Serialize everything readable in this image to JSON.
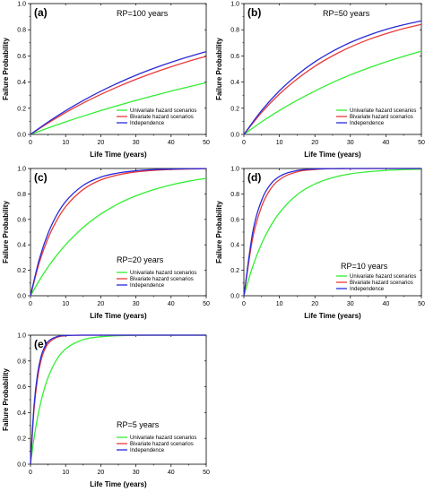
{
  "chart_data": [
    {
      "type": "line",
      "panel_label": "(a)",
      "annotation": "RP=100 years",
      "xlabel": "Life Time (years)",
      "ylabel": "Failure Probability",
      "xlim": [
        0,
        50
      ],
      "ylim": [
        0,
        1.0
      ],
      "xticks": [
        "0",
        "10",
        "20",
        "30",
        "40",
        "50"
      ],
      "yticks": [
        "0.0",
        "0.2",
        "0.4",
        "0.6",
        "0.8",
        "1.0"
      ],
      "legend_position": "bottom-right",
      "x": [
        0,
        5,
        10,
        15,
        20,
        25,
        30,
        35,
        40,
        45,
        50
      ],
      "series": [
        {
          "name": "Univariate hazard scenarios",
          "color": "#33ee33",
          "values": [
            0,
            0.049,
            0.096,
            0.14,
            0.182,
            0.222,
            0.26,
            0.296,
            0.331,
            0.364,
            0.395
          ]
        },
        {
          "name": "Bivariate hazard scenarios",
          "color": "#e83a3a",
          "values": [
            0,
            0.087,
            0.167,
            0.24,
            0.306,
            0.366,
            0.421,
            0.471,
            0.517,
            0.559,
            0.597
          ]
        },
        {
          "name": "Independence",
          "color": "#2a2ad8",
          "values": [
            0,
            0.095,
            0.181,
            0.259,
            0.33,
            0.394,
            0.452,
            0.504,
            0.551,
            0.594,
            0.633
          ]
        }
      ]
    },
    {
      "type": "line",
      "panel_label": "(b)",
      "annotation": "RP=50 years",
      "xlabel": "Life Time (years)",
      "ylabel": "Failure Probability",
      "xlim": [
        0,
        50
      ],
      "ylim": [
        0,
        1.0
      ],
      "xticks": [
        "0",
        "10",
        "20",
        "30",
        "40",
        "50"
      ],
      "yticks": [
        "0.0",
        "0.2",
        "0.4",
        "0.6",
        "0.8",
        "1.0"
      ],
      "legend_position": "bottom-right",
      "x": [
        0,
        5,
        10,
        15,
        20,
        25,
        30,
        35,
        40,
        45,
        50
      ],
      "series": [
        {
          "name": "Univariate hazard scenarios",
          "color": "#33ee33",
          "values": [
            0,
            0.096,
            0.183,
            0.261,
            0.332,
            0.397,
            0.455,
            0.507,
            0.554,
            0.597,
            0.636
          ]
        },
        {
          "name": "Bivariate hazard scenarios",
          "color": "#e83a3a",
          "values": [
            0,
            0.168,
            0.308,
            0.424,
            0.521,
            0.601,
            0.668,
            0.724,
            0.77,
            0.809,
            0.841
          ]
        },
        {
          "name": "Independence",
          "color": "#2a2ad8",
          "values": [
            0,
            0.183,
            0.333,
            0.455,
            0.555,
            0.636,
            0.703,
            0.757,
            0.802,
            0.838,
            0.868
          ]
        }
      ]
    },
    {
      "type": "line",
      "panel_label": "(c)",
      "annotation": "RP=20 years",
      "xlabel": "Life Time (years)",
      "ylabel": "Failure Probability",
      "xlim": [
        0,
        50
      ],
      "ylim": [
        0,
        1.0
      ],
      "xticks": [
        "0",
        "10",
        "20",
        "30",
        "40",
        "50"
      ],
      "yticks": [
        "0.0",
        "0.2",
        "0.4",
        "0.6",
        "0.8",
        "1.0"
      ],
      "legend_position": "bottom-right",
      "x": [
        0,
        2.5,
        5,
        7.5,
        10,
        15,
        20,
        25,
        30,
        35,
        40,
        45,
        50
      ],
      "series": [
        {
          "name": "Univariate hazard scenarios",
          "color": "#33ee33",
          "values": [
            0,
            0.119,
            0.226,
            0.319,
            0.401,
            0.537,
            0.642,
            0.723,
            0.785,
            0.834,
            0.871,
            0.9,
            0.923
          ]
        },
        {
          "name": "Bivariate hazard scenarios",
          "color": "#e83a3a",
          "values": [
            0,
            0.26,
            0.452,
            0.594,
            0.7,
            0.835,
            0.91,
            0.95,
            0.973,
            0.985,
            0.992,
            0.996,
            0.998
          ]
        },
        {
          "name": "Independence",
          "color": "#2a2ad8",
          "values": [
            0,
            0.286,
            0.49,
            0.636,
            0.74,
            0.867,
            0.932,
            0.965,
            0.982,
            0.991,
            0.995,
            0.998,
            0.999
          ]
        }
      ]
    },
    {
      "type": "line",
      "panel_label": "(d)",
      "annotation": "RP=10 years",
      "xlabel": "Life Time (years)",
      "ylabel": "Failure Probability",
      "xlim": [
        0,
        50
      ],
      "ylim": [
        0,
        1.0
      ],
      "xticks": [
        "0",
        "10",
        "20",
        "30",
        "40",
        "50"
      ],
      "yticks": [
        "0.0",
        "0.2",
        "0.4",
        "0.6",
        "0.8",
        "1.0"
      ],
      "legend_position": "bottom-right",
      "x": [
        0,
        2.5,
        5,
        7.5,
        10,
        15,
        20,
        25,
        30,
        40,
        50
      ],
      "series": [
        {
          "name": "Univariate hazard scenarios",
          "color": "#33ee33",
          "values": [
            0,
            0.231,
            0.41,
            0.546,
            0.651,
            0.794,
            0.878,
            0.928,
            0.958,
            0.985,
            0.995
          ]
        },
        {
          "name": "Bivariate hazard scenarios",
          "color": "#e83a3a",
          "values": [
            0,
            0.455,
            0.703,
            0.838,
            0.912,
            0.974,
            0.992,
            0.998,
            0.999,
            1.0,
            1.0
          ]
        },
        {
          "name": "Independence",
          "color": "#2a2ad8",
          "values": [
            0,
            0.5,
            0.75,
            0.875,
            0.937,
            0.984,
            0.996,
            0.999,
            1.0,
            1.0,
            1.0
          ]
        }
      ]
    },
    {
      "type": "line",
      "panel_label": "(e)",
      "annotation": "RP=5 years",
      "xlabel": "Life Time (years)",
      "ylabel": "Failure Probability",
      "xlim": [
        0,
        50
      ],
      "ylim": [
        0,
        1.0
      ],
      "xticks": [
        "0",
        "10",
        "20",
        "30",
        "40",
        "50"
      ],
      "yticks": [
        "0.0",
        "0.2",
        "0.4",
        "0.6",
        "0.8",
        "1.0"
      ],
      "legend_position": "bottom-right",
      "x": [
        0,
        1,
        2,
        3,
        4,
        5,
        7.5,
        10,
        15,
        20,
        30,
        40,
        50
      ],
      "series": [
        {
          "name": "Univariate hazard scenarios",
          "color": "#33ee33",
          "values": [
            0,
            0.2,
            0.36,
            0.488,
            0.59,
            0.672,
            0.813,
            0.893,
            0.965,
            0.988,
            0.999,
            1.0,
            1.0
          ]
        },
        {
          "name": "Bivariate hazard scenarios",
          "color": "#e83a3a",
          "values": [
            0,
            0.42,
            0.664,
            0.805,
            0.887,
            0.934,
            0.983,
            0.996,
            1.0,
            1.0,
            1.0,
            1.0,
            1.0
          ]
        },
        {
          "name": "Independence",
          "color": "#2a2ad8",
          "values": [
            0,
            0.45,
            0.697,
            0.834,
            0.908,
            0.95,
            0.988,
            0.997,
            1.0,
            1.0,
            1.0,
            1.0,
            1.0
          ]
        }
      ]
    }
  ]
}
